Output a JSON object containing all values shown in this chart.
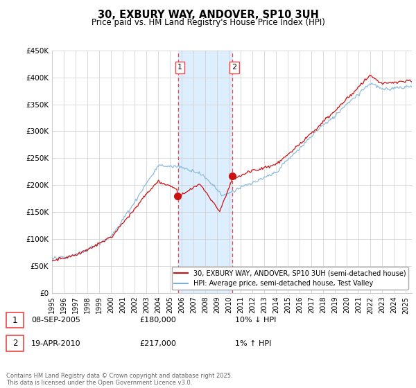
{
  "title": "30, EXBURY WAY, ANDOVER, SP10 3UH",
  "subtitle": "Price paid vs. HM Land Registry's House Price Index (HPI)",
  "ylim": [
    0,
    450000
  ],
  "yticks": [
    0,
    50000,
    100000,
    150000,
    200000,
    250000,
    300000,
    350000,
    400000,
    450000
  ],
  "ytick_labels": [
    "£0",
    "£50K",
    "£100K",
    "£150K",
    "£200K",
    "£250K",
    "£300K",
    "£350K",
    "£400K",
    "£450K"
  ],
  "xlim_start": 1995.0,
  "xlim_end": 2025.5,
  "purchase1_x": 2005.686,
  "purchase1_y": 180000,
  "purchase1_label": "1",
  "purchase1_date": "08-SEP-2005",
  "purchase1_price": "£180,000",
  "purchase1_hpi": "10% ↓ HPI",
  "purchase2_x": 2010.3,
  "purchase2_y": 217000,
  "purchase2_label": "2",
  "purchase2_date": "19-APR-2010",
  "purchase2_price": "£217,000",
  "purchase2_hpi": "1% ↑ HPI",
  "shading_color": "#ddeeff",
  "vline_color": "#ee4444",
  "hpi_line_color": "#7ab0d8",
  "price_line_color": "#cc1111",
  "legend_label_price": "30, EXBURY WAY, ANDOVER, SP10 3UH (semi-detached house)",
  "legend_label_hpi": "HPI: Average price, semi-detached house, Test Valley",
  "footer": "Contains HM Land Registry data © Crown copyright and database right 2025.\nThis data is licensed under the Open Government Licence v3.0.",
  "background_color": "#ffffff",
  "grid_color": "#cccccc"
}
